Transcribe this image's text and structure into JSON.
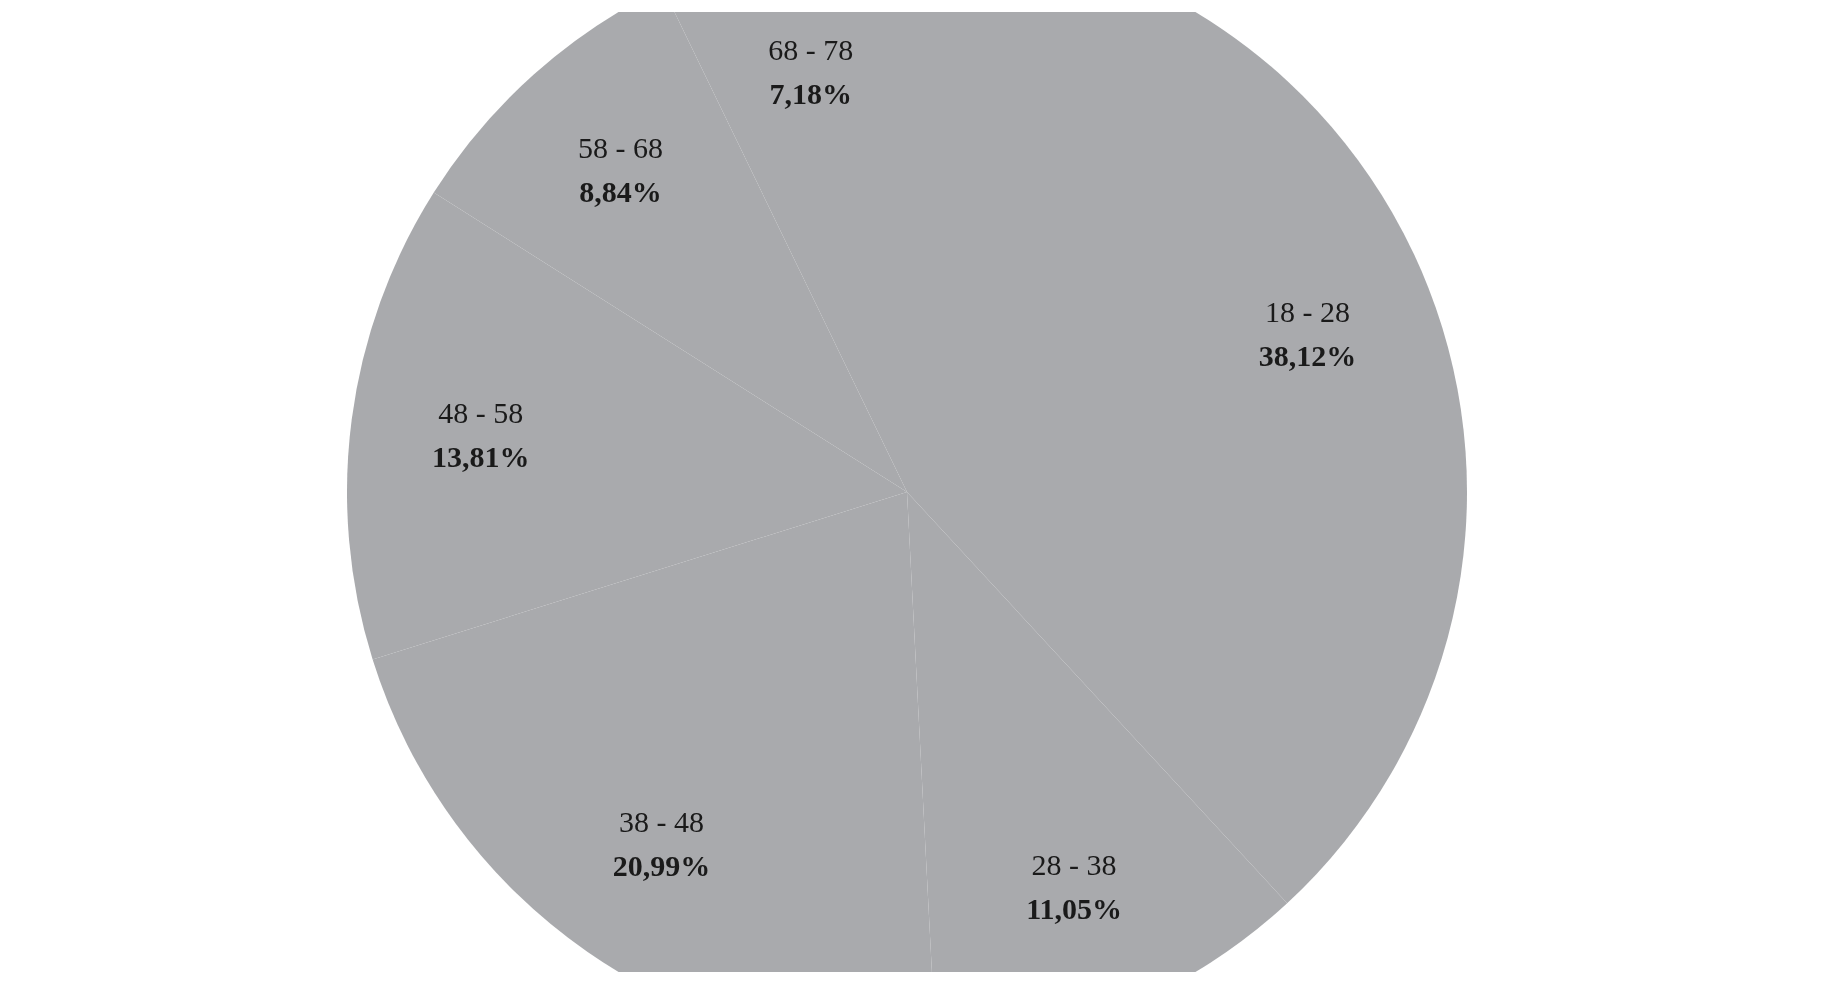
{
  "chart_data": {
    "type": "pie",
    "categories": [
      "18 - 28",
      "28 - 38",
      "38 - 48",
      "48 - 58",
      "58 - 68",
      "68 - 78"
    ],
    "values": [
      38.12,
      11.05,
      20.99,
      13.81,
      8.84,
      7.18
    ],
    "value_labels": [
      "38,12%",
      "11,05%",
      "20,99%",
      "13,81%",
      "8,84%",
      "7,18%"
    ],
    "colors": [
      "#a9aaad",
      "#a9aaad",
      "#a9aaad",
      "#a9aaad",
      "#a9aaad",
      "#a9aaad"
    ],
    "legend": false
  }
}
